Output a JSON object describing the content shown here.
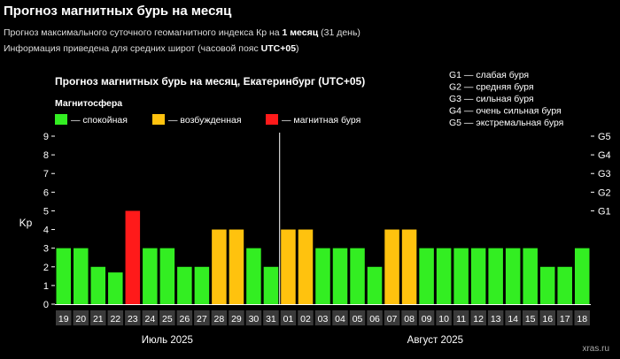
{
  "header": {
    "title": "Прогноз магнитных бурь на месяц",
    "line1_prefix": "Прогноз максимального суточного геомагнитного индекса Кр на ",
    "line1_bold": "1 месяц",
    "line1_suffix": " (31 день)",
    "line2_prefix": "Информация приведена для средних широт (часовой пояс ",
    "line2_bold": "UTC+05",
    "line2_suffix": ")"
  },
  "chart_data": {
    "type": "bar",
    "title": "Прогноз магнитных бурь на месяц, Екатеринбург (UTC+05)",
    "ylabel": "Kp",
    "ylim": [
      0,
      9
    ],
    "yticks": [
      0,
      1,
      2,
      3,
      4,
      5,
      6,
      7,
      8,
      9
    ],
    "right_axis": [
      {
        "label": "G1",
        "kp": 5
      },
      {
        "label": "G2",
        "kp": 6
      },
      {
        "label": "G3",
        "kp": 7
      },
      {
        "label": "G4",
        "kp": 8
      },
      {
        "label": "G5",
        "kp": 9
      }
    ],
    "legend_title": "Магнитосфера",
    "legend": [
      {
        "label": "— спокойная",
        "color": "#33ee22"
      },
      {
        "label": "— возбужденная",
        "color": "#ffc20e"
      },
      {
        "label": "— магнитная буря",
        "color": "#ff1a1a"
      }
    ],
    "storm_scale": [
      "G1 — слабая буря",
      "G2 — средняя буря",
      "G3 — сильная буря",
      "G4 — очень сильная буря",
      "G5 — экстремальная буря"
    ],
    "categories": [
      "19",
      "20",
      "21",
      "22",
      "23",
      "24",
      "25",
      "26",
      "27",
      "28",
      "29",
      "30",
      "31",
      "01",
      "02",
      "03",
      "04",
      "05",
      "06",
      "07",
      "08",
      "09",
      "10",
      "11",
      "12",
      "13",
      "14",
      "15",
      "16",
      "17",
      "18"
    ],
    "values": [
      3,
      3,
      2,
      1.7,
      5,
      3,
      3,
      2,
      2,
      4,
      4,
      3,
      2,
      4,
      4,
      3,
      3,
      3,
      2,
      4,
      4,
      3,
      3,
      3,
      3,
      3,
      3,
      3,
      2,
      2,
      3
    ],
    "months": [
      {
        "label": "Июль 2025",
        "from": 0,
        "to": 12
      },
      {
        "label": "Август 2025",
        "from": 13,
        "to": 30
      }
    ],
    "colors": {
      "quiet": "#33ee22",
      "active": "#ffc20e",
      "storm": "#ff1a1a"
    },
    "watermark": "xras.ru"
  }
}
